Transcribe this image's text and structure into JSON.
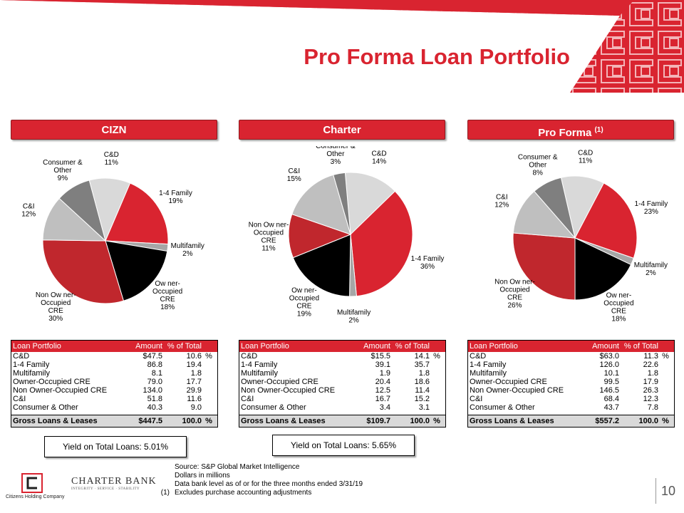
{
  "title": "Pro Forma Loan Portfolio",
  "page_number": "10",
  "colors": {
    "accent": "#d92430",
    "dark_red": "#c0272d",
    "black": "#000000",
    "light_gray": "#d9d9d9",
    "mid_gray": "#a6a6a6",
    "dark_gray": "#7f7f7f"
  },
  "sections": [
    {
      "header": "CIZN",
      "header_sup": "",
      "yield_text": "Yield on Total Loans: 5.01%",
      "table": {
        "headers": [
          "Loan Portfolio",
          "Amount",
          "% of Total"
        ],
        "rows": [
          {
            "label": "C&D",
            "amount": "$47.5",
            "pct": "10.6",
            "unit": "%"
          },
          {
            "label": "1-4 Family",
            "amount": "86.8",
            "pct": "19.4",
            "unit": ""
          },
          {
            "label": "Multifamily",
            "amount": "8.1",
            "pct": "1.8",
            "unit": ""
          },
          {
            "label": "Owner-Occupied CRE",
            "amount": "79.0",
            "pct": "17.7",
            "unit": ""
          },
          {
            "label": "Non Owner-Occupied CRE",
            "amount": "134.0",
            "pct": "29.9",
            "unit": ""
          },
          {
            "label": "C&I",
            "amount": "51.8",
            "pct": "11.6",
            "unit": ""
          },
          {
            "label": "Consumer & Other",
            "amount": "40.3",
            "pct": "9.0",
            "unit": ""
          }
        ],
        "total": {
          "label": "Gross Loans & Leases",
          "amount": "$447.5",
          "pct": "100.0",
          "unit": "%"
        }
      }
    },
    {
      "header": "Charter",
      "header_sup": "",
      "yield_text": "Yield on Total Loans: 5.65%",
      "table": {
        "headers": [
          "Loan Portfolio",
          "Amount",
          "% of Total"
        ],
        "rows": [
          {
            "label": "C&D",
            "amount": "$15.5",
            "pct": "14.1",
            "unit": "%"
          },
          {
            "label": "1-4 Family",
            "amount": "39.1",
            "pct": "35.7",
            "unit": ""
          },
          {
            "label": "Multifamily",
            "amount": "1.9",
            "pct": "1.8",
            "unit": ""
          },
          {
            "label": "Owner-Occupied CRE",
            "amount": "20.4",
            "pct": "18.6",
            "unit": ""
          },
          {
            "label": "Non Owner-Occupied CRE",
            "amount": "12.5",
            "pct": "11.4",
            "unit": ""
          },
          {
            "label": "C&I",
            "amount": "16.7",
            "pct": "15.2",
            "unit": ""
          },
          {
            "label": "Consumer & Other",
            "amount": "3.4",
            "pct": "3.1",
            "unit": ""
          }
        ],
        "total": {
          "label": "Gross Loans & Leases",
          "amount": "$109.7",
          "pct": "100.0",
          "unit": "%"
        }
      }
    },
    {
      "header": "Pro Forma",
      "header_sup": "(1)",
      "yield_text": "",
      "table": {
        "headers": [
          "Loan Portfolio",
          "Amount",
          "% of Total"
        ],
        "rows": [
          {
            "label": "C&D",
            "amount": "$63.0",
            "pct": "11.3",
            "unit": "%"
          },
          {
            "label": "1-4 Family",
            "amount": "126.0",
            "pct": "22.6",
            "unit": ""
          },
          {
            "label": "Multifamily",
            "amount": "10.1",
            "pct": "1.8",
            "unit": ""
          },
          {
            "label": "Owner-Occupied CRE",
            "amount": "99.5",
            "pct": "17.9",
            "unit": ""
          },
          {
            "label": "Non Owner-Occupied CRE",
            "amount": "146.5",
            "pct": "26.3",
            "unit": ""
          },
          {
            "label": "C&I",
            "amount": "68.4",
            "pct": "12.3",
            "unit": ""
          },
          {
            "label": "Consumer & Other",
            "amount": "43.7",
            "pct": "7.8",
            "unit": ""
          }
        ],
        "total": {
          "label": "Gross Loans & Leases",
          "amount": "$557.2",
          "pct": "100.0",
          "unit": "%"
        }
      }
    }
  ],
  "chart_data": [
    {
      "type": "pie",
      "title": "CIZN",
      "categories": [
        "C&D",
        "1-4 Family",
        "Multifamily",
        "Owner-Occupied CRE",
        "Non Owner-Occupied CRE",
        "C&I",
        "Consumer & Other"
      ],
      "display_labels": [
        [
          "C&D"
        ],
        [
          "1-4 Family"
        ],
        [
          "Multifamily"
        ],
        [
          "Ow ner-",
          "Occupied",
          "CRE"
        ],
        [
          "Non Ow ner-",
          "Occupied",
          "CRE"
        ],
        [
          "C&I"
        ],
        [
          "Consumer &",
          "Other"
        ]
      ],
      "values": [
        10.6,
        19.4,
        1.8,
        17.7,
        29.9,
        11.6,
        9.0
      ],
      "value_labels": [
        "11%",
        "19%",
        "2%",
        "18%",
        "30%",
        "12%",
        "9%"
      ],
      "colors": [
        "#d9d9d9",
        "#d92430",
        "#a6a6a6",
        "#000000",
        "#c0272d",
        "#bfbfbf",
        "#7f7f7f"
      ]
    },
    {
      "type": "pie",
      "title": "Charter",
      "categories": [
        "C&D",
        "1-4 Family",
        "Multifamily",
        "Owner-Occupied CRE",
        "Non Owner-Occupied CRE",
        "C&I",
        "Consumer & Other"
      ],
      "display_labels": [
        [
          "C&D"
        ],
        [
          "1-4 Family"
        ],
        [
          "Multifamily"
        ],
        [
          "Ow ner-",
          "Occupied",
          "CRE"
        ],
        [
          "Non Ow ner-",
          "Occupied",
          "CRE"
        ],
        [
          "C&I"
        ],
        [
          "Consumer &",
          "Other"
        ]
      ],
      "values": [
        14.1,
        35.7,
        1.8,
        18.6,
        11.4,
        15.2,
        3.1
      ],
      "value_labels": [
        "14%",
        "36%",
        "2%",
        "19%",
        "11%",
        "15%",
        "3%"
      ],
      "colors": [
        "#d9d9d9",
        "#d92430",
        "#a6a6a6",
        "#000000",
        "#c0272d",
        "#bfbfbf",
        "#7f7f7f"
      ]
    },
    {
      "type": "pie",
      "title": "Pro Forma",
      "categories": [
        "C&D",
        "1-4 Family",
        "Multifamily",
        "Owner-Occupied CRE",
        "Non Owner-Occupied CRE",
        "C&I",
        "Consumer & Other"
      ],
      "display_labels": [
        [
          "C&D"
        ],
        [
          "1-4 Family"
        ],
        [
          "Multifamily"
        ],
        [
          "Ow ner-",
          "Occupied",
          "CRE"
        ],
        [
          "Non Ow ner-",
          "Occupied",
          "CRE"
        ],
        [
          "C&I"
        ],
        [
          "Consumer &",
          "Other"
        ]
      ],
      "values": [
        11.3,
        22.6,
        1.8,
        17.9,
        26.3,
        12.3,
        7.8
      ],
      "value_labels": [
        "11%",
        "23%",
        "2%",
        "18%",
        "26%",
        "12%",
        "8%"
      ],
      "colors": [
        "#d9d9d9",
        "#d92430",
        "#a6a6a6",
        "#000000",
        "#c0272d",
        "#bfbfbf",
        "#7f7f7f"
      ]
    }
  ],
  "notes": [
    {
      "marker": "",
      "text": "Source: S&P Global Market Intelligence"
    },
    {
      "marker": "",
      "text": "Dollars in millions"
    },
    {
      "marker": "",
      "text": "Data bank level as of or for the three months ended 3/31/19"
    },
    {
      "marker": "(1)",
      "text": "Excludes purchase accounting adjustments"
    }
  ],
  "logos": {
    "citizens_name": "Citizens Holding Company",
    "charter_name": "CHARTER BANK",
    "charter_tagline": "INTEGRITY · SERVICE · STABILITY"
  }
}
